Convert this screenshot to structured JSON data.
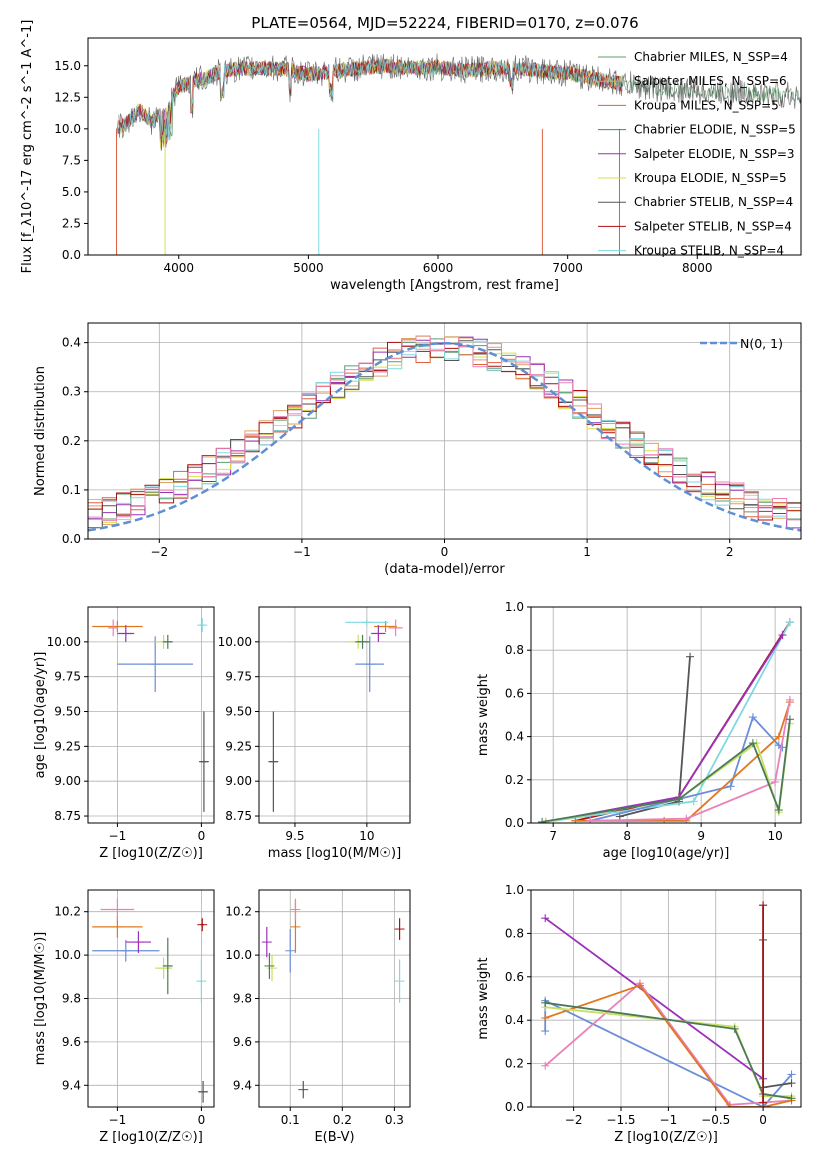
{
  "title": "PLATE=0564, MJD=52224, FIBERID=0170, z=0.076",
  "colors": {
    "chabrier_miles": "#5e9c6e",
    "salpeter_miles": "#e0a060",
    "kroupa_miles": "#e06040",
    "chabrier_elodie": "#4a8a5a",
    "salpeter_elodie": "#9b30b0",
    "kroupa_elodie": "#d8e04a",
    "chabrier_stelib": "#555555",
    "salpeter_stelib": "#aa1111",
    "kroupa_stelib": "#80d8e0",
    "blue": "#6a8ed8",
    "orange": "#e07820",
    "pink": "#e882b8",
    "purple": "#9a30b8",
    "lime": "#c8e060",
    "gray": "#555555",
    "darkgreen": "#4a7a5a",
    "normal": "#5f8fd4"
  },
  "chart_data": [
    {
      "type": "line",
      "name": "spectrum",
      "title": "PLATE=0564, MJD=52224, FIBERID=0170, z=0.076",
      "xlabel": "wavelength [Angstrom, rest frame]",
      "ylabel": "Flux [f_λ10^-17 erg cm^-2 s^-1 A^-1]",
      "xlim": [
        3300,
        8800
      ],
      "ylim": [
        0,
        17.2
      ],
      "xticks": [
        4000,
        5000,
        6000,
        7000,
        8000
      ],
      "yticks": [
        0.0,
        2.5,
        5.0,
        7.5,
        10.0,
        12.5,
        15.0
      ],
      "legend_position": "top-right",
      "legend": [
        "Chabrier MILES, N_SSP=4",
        "Salpeter MILES, N_SSP=6",
        "Kroupa MILES, N_SSP=5",
        "Chabrier ELODIE, N_SSP=5",
        "Salpeter ELODIE, N_SSP=3",
        "Kroupa ELODIE, N_SSP=5",
        "Chabrier STELIB, N_SSP=4",
        "Salpeter STELIB, N_SSP=4",
        "Kroupa STELIB, N_SSP=4"
      ],
      "series_approx": {
        "x": [
          3520,
          3600,
          3700,
          3800,
          3900,
          4000,
          4100,
          4200,
          4300,
          4400,
          4600,
          4800,
          5000,
          5200,
          5400,
          5600,
          5800,
          6000,
          6200,
          6400,
          6600,
          6800,
          7000,
          7200,
          7400,
          7600,
          7800,
          8000,
          8200,
          8400,
          8600,
          8800
        ],
        "y": [
          10.0,
          10.5,
          11.5,
          10.5,
          11.8,
          13.3,
          13.8,
          14.0,
          14.4,
          14.7,
          14.8,
          14.8,
          14.3,
          14.6,
          14.8,
          15.0,
          14.8,
          14.9,
          14.6,
          14.8,
          14.8,
          14.6,
          14.4,
          14.0,
          13.6,
          13.3,
          13.1,
          13.0,
          12.9,
          12.8,
          12.7,
          12.6
        ]
      }
    },
    {
      "type": "line",
      "name": "residual-distribution",
      "xlabel": "(data-model)/error",
      "ylabel": "Normed distribution",
      "xlim": [
        -2.5,
        2.5
      ],
      "ylim": [
        0,
        0.44
      ],
      "xticks": [
        -2,
        -1,
        0,
        1,
        2
      ],
      "yticks": [
        0.0,
        0.1,
        0.2,
        0.3,
        0.4
      ],
      "grid": true,
      "legend_position": "top-right",
      "legend": [
        "N(0, 1)"
      ]
    },
    {
      "type": "scatter",
      "name": "age-vs-z",
      "xlabel": "Z [log10(Z/Z☉)]",
      "ylabel": "age  [log10(age/yr)]",
      "xlim": [
        -1.35,
        0.15
      ],
      "ylim": [
        8.7,
        10.25
      ],
      "xticks": [
        -1,
        0
      ],
      "yticks": [
        8.75,
        9.0,
        9.25,
        9.5,
        9.75,
        10.0
      ],
      "grid": true,
      "points": [
        {
          "x": -0.55,
          "y": 9.84,
          "xerr": 0.45,
          "yerr": 0.2,
          "c": "blue"
        },
        {
          "x": -1.0,
          "y": 10.11,
          "xerr": 0.3,
          "yerr": 0.04,
          "c": "orange"
        },
        {
          "x": -1.05,
          "y": 10.1,
          "xerr": 0.05,
          "yerr": 0.06,
          "c": "pink"
        },
        {
          "x": -0.9,
          "y": 10.06,
          "xerr": 0.1,
          "yerr": 0.06,
          "c": "purple"
        },
        {
          "x": -0.45,
          "y": 10.0,
          "xerr": 0.1,
          "yerr": 0.05,
          "c": "lime"
        },
        {
          "x": -0.4,
          "y": 10.0,
          "xerr": 0.05,
          "yerr": 0.05,
          "c": "darkgreen"
        },
        {
          "x": 0.01,
          "y": 10.12,
          "xerr": 0.03,
          "yerr": 0.05,
          "c": "kroupa_stelib"
        },
        {
          "x": 0.03,
          "y": 9.14,
          "xerr": 0.05,
          "yerr": 0.36,
          "c": "gray"
        }
      ]
    },
    {
      "type": "scatter",
      "name": "age-vs-mass",
      "xlabel": "mass [log10(M/M☉)]",
      "ylabel": "",
      "xlim": [
        9.25,
        10.3
      ],
      "ylim": [
        8.7,
        10.25
      ],
      "xticks": [
        9.5,
        10.0
      ],
      "yticks": [
        8.75,
        9.0,
        9.25,
        9.5,
        9.75,
        10.0
      ],
      "grid": true,
      "points": [
        {
          "x": 10.02,
          "y": 9.84,
          "xerr": 0.1,
          "yerr": 0.2,
          "c": "blue"
        },
        {
          "x": 10.13,
          "y": 10.11,
          "xerr": 0.08,
          "yerr": 0.04,
          "c": "orange"
        },
        {
          "x": 10.2,
          "y": 10.1,
          "xerr": 0.05,
          "yerr": 0.06,
          "c": "pink"
        },
        {
          "x": 10.08,
          "y": 10.06,
          "xerr": 0.05,
          "yerr": 0.06,
          "c": "purple"
        },
        {
          "x": 9.94,
          "y": 10.0,
          "xerr": 0.08,
          "yerr": 0.05,
          "c": "lime"
        },
        {
          "x": 9.97,
          "y": 10.0,
          "xerr": 0.05,
          "yerr": 0.05,
          "c": "darkgreen"
        },
        {
          "x": 10.0,
          "y": 10.14,
          "xerr": 0.15,
          "yerr": 0.02,
          "c": "kroupa_stelib"
        },
        {
          "x": 9.35,
          "y": 9.14,
          "xerr": 0.03,
          "yerr": 0.36,
          "c": "gray"
        }
      ]
    },
    {
      "type": "line",
      "name": "mass-weight-vs-age",
      "xlabel": "age  [log10(age/yr)]",
      "ylabel": "mass weight",
      "xlim": [
        6.7,
        10.35
      ],
      "ylim": [
        0,
        1.0
      ],
      "xticks": [
        7,
        8,
        9,
        10
      ],
      "yticks": [
        0.0,
        0.2,
        0.4,
        0.6,
        0.8,
        1.0
      ],
      "grid": true,
      "series": [
        {
          "c": "gray",
          "x": [
            7.9,
            8.7,
            8.85
          ],
          "y": [
            0.03,
            0.1,
            0.77
          ]
        },
        {
          "c": "salpeter_stelib",
          "x": [
            7.3,
            8.7,
            10.2
          ],
          "y": [
            0.01,
            0.12,
            0.93
          ]
        },
        {
          "c": "kroupa_stelib",
          "x": [
            7.0,
            8.9,
            10.2
          ],
          "y": [
            0.01,
            0.1,
            0.93
          ]
        },
        {
          "c": "purple",
          "x": [
            6.9,
            8.7,
            10.1
          ],
          "y": [
            0.005,
            0.12,
            0.87
          ]
        },
        {
          "c": "blue",
          "x": [
            7.5,
            9.4,
            9.7,
            10.05,
            10.1
          ],
          "y": [
            0.01,
            0.17,
            0.49,
            0.36,
            0.35
          ]
        },
        {
          "c": "orange",
          "x": [
            7.3,
            8.5,
            8.8,
            10.05,
            10.2
          ],
          "y": [
            0.01,
            0.01,
            0.01,
            0.4,
            0.56
          ]
        },
        {
          "c": "pink",
          "x": [
            7.5,
            8.8,
            10.0,
            10.2
          ],
          "y": [
            0.01,
            0.02,
            0.19,
            0.57
          ]
        },
        {
          "c": "lime",
          "x": [
            6.9,
            8.7,
            9.75,
            10.05,
            10.2
          ],
          "y": [
            0.005,
            0.11,
            0.37,
            0.05,
            0.46
          ]
        },
        {
          "c": "darkgreen",
          "x": [
            6.85,
            8.7,
            9.7,
            10.05,
            10.2
          ],
          "y": [
            0.005,
            0.11,
            0.37,
            0.06,
            0.48
          ]
        }
      ]
    },
    {
      "type": "scatter",
      "name": "mass-vs-z",
      "xlabel": "Z [log10(Z/Z☉)]",
      "ylabel": "mass [log10(M/M☉)]",
      "xlim": [
        -1.35,
        0.15
      ],
      "ylim": [
        9.3,
        10.3
      ],
      "xticks": [
        -1,
        0
      ],
      "yticks": [
        9.4,
        9.6,
        9.8,
        10.0,
        10.2
      ],
      "grid": true,
      "points": [
        {
          "x": -0.9,
          "y": 10.02,
          "xerr": 0.4,
          "yerr": 0.05,
          "c": "blue"
        },
        {
          "x": -1.0,
          "y": 10.13,
          "xerr": 0.3,
          "yerr": 0.05,
          "c": "orange"
        },
        {
          "x": -1.0,
          "y": 10.21,
          "xerr": 0.2,
          "yerr": 0.05,
          "c": "pink"
        },
        {
          "x": -0.75,
          "y": 10.06,
          "xerr": 0.15,
          "yerr": 0.05,
          "c": "purple"
        },
        {
          "x": -0.45,
          "y": 9.94,
          "xerr": 0.1,
          "yerr": 0.05,
          "c": "lime"
        },
        {
          "x": -0.4,
          "y": 9.95,
          "xerr": 0.05,
          "yerr": 0.13,
          "c": "darkgreen"
        },
        {
          "x": 0.0,
          "y": 9.88,
          "xerr": 0.02,
          "yerr": 0.1,
          "c": "kroupa_stelib"
        },
        {
          "x": 0.01,
          "y": 10.14,
          "xerr": 0.02,
          "yerr": 0.03,
          "c": "salpeter_stelib"
        },
        {
          "x": 0.02,
          "y": 9.37,
          "xerr": 0.05,
          "yerr": 0.05,
          "c": "gray"
        }
      ]
    },
    {
      "type": "scatter",
      "name": "mass-vs-ebv",
      "xlabel": "E(B-V)",
      "ylabel": "",
      "xlim": [
        0.04,
        0.33
      ],
      "ylim": [
        9.3,
        10.3
      ],
      "xticks": [
        0.1,
        0.2,
        0.3
      ],
      "yticks": [
        9.4,
        9.6,
        9.8,
        10.0,
        10.2
      ],
      "grid": true,
      "points": [
        {
          "x": 0.1,
          "y": 10.02,
          "yerr": 0.1,
          "c": "blue"
        },
        {
          "x": 0.11,
          "y": 10.13,
          "yerr": 0.12,
          "c": "orange"
        },
        {
          "x": 0.11,
          "y": 10.21,
          "yerr": 0.05,
          "c": "pink"
        },
        {
          "x": 0.055,
          "y": 10.06,
          "yerr": 0.07,
          "c": "purple"
        },
        {
          "x": 0.065,
          "y": 9.94,
          "yerr": 0.06,
          "c": "lime"
        },
        {
          "x": 0.06,
          "y": 9.95,
          "yerr": 0.06,
          "c": "darkgreen"
        },
        {
          "x": 0.31,
          "y": 9.88,
          "yerr": 0.1,
          "c": "kroupa_stelib"
        },
        {
          "x": 0.31,
          "y": 10.12,
          "yerr": 0.05,
          "c": "salpeter_stelib"
        },
        {
          "x": 0.125,
          "y": 9.38,
          "yerr": 0.04,
          "c": "gray"
        }
      ]
    },
    {
      "type": "line",
      "name": "mass-weight-vs-z",
      "xlabel": "Z [log10(Z/Z☉)]",
      "ylabel": "mass weight",
      "xlim": [
        -2.45,
        0.4
      ],
      "ylim": [
        0,
        1.0
      ],
      "xticks": [
        -2.0,
        -1.5,
        -1.0,
        -0.5,
        0.0
      ],
      "yticks": [
        0.0,
        0.2,
        0.4,
        0.6,
        0.8,
        1.0
      ],
      "grid": true,
      "series": [
        {
          "c": "purple",
          "x": [
            -2.3,
            0.0,
            0.0
          ],
          "y": [
            0.87,
            0.13,
            0.0
          ]
        },
        {
          "c": "blue",
          "x": [
            -2.3,
            -2.3,
            0.0,
            0.3
          ],
          "y": [
            0.35,
            0.49,
            0.0,
            0.15
          ]
        },
        {
          "c": "pink",
          "x": [
            -2.3,
            -1.3,
            -0.35,
            0.3
          ],
          "y": [
            0.19,
            0.57,
            0.01,
            0.03
          ]
        },
        {
          "c": "orange",
          "x": [
            -2.3,
            -1.3,
            -0.35,
            0.0,
            0.3
          ],
          "y": [
            0.41,
            0.56,
            0.0,
            0.0,
            0.03
          ]
        },
        {
          "c": "lime",
          "x": [
            -2.3,
            -0.3,
            0.0,
            0.3
          ],
          "y": [
            0.46,
            0.37,
            0.05,
            0.05
          ]
        },
        {
          "c": "darkgreen",
          "x": [
            -2.3,
            -0.3,
            0.0,
            0.3
          ],
          "y": [
            0.48,
            0.36,
            0.06,
            0.04
          ]
        },
        {
          "c": "gray",
          "x": [
            0.0,
            0.0,
            0.3
          ],
          "y": [
            0.77,
            0.09,
            0.11
          ]
        },
        {
          "c": "kroupa_stelib",
          "x": [
            0.0,
            0.0
          ],
          "y": [
            0.93,
            0.0
          ]
        },
        {
          "c": "salpeter_stelib",
          "x": [
            0.0,
            0.0
          ],
          "y": [
            0.93,
            0.02
          ]
        }
      ]
    }
  ]
}
